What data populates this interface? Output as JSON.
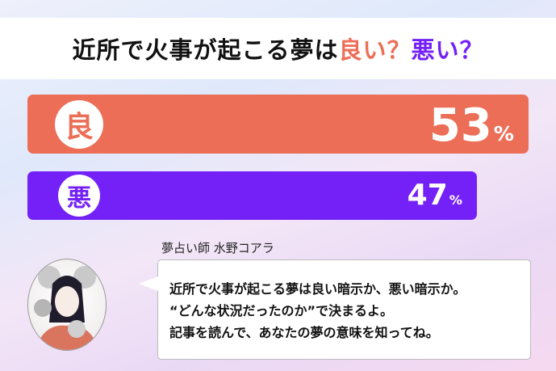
{
  "title": {
    "main": "近所で火事が起こる夢は",
    "good": "良い？",
    "bad": "悪い？"
  },
  "results": [
    {
      "label": "良",
      "percent": 53,
      "percent_text": "53",
      "unit": "%",
      "color": "#ec6e57"
    },
    {
      "label": "悪",
      "percent": 47,
      "percent_text": "47",
      "unit": "%",
      "color": "#7421f7"
    }
  ],
  "advisor": {
    "name": "夢占い師 水野コアラ"
  },
  "message": {
    "lines": [
      "近所で火事が起こる夢は良い暗示か、悪い暗示か。",
      "“どんな状況だったのか”で決まるよ。",
      "記事を読んで、あなたの夢の意味を知ってね。"
    ]
  }
}
